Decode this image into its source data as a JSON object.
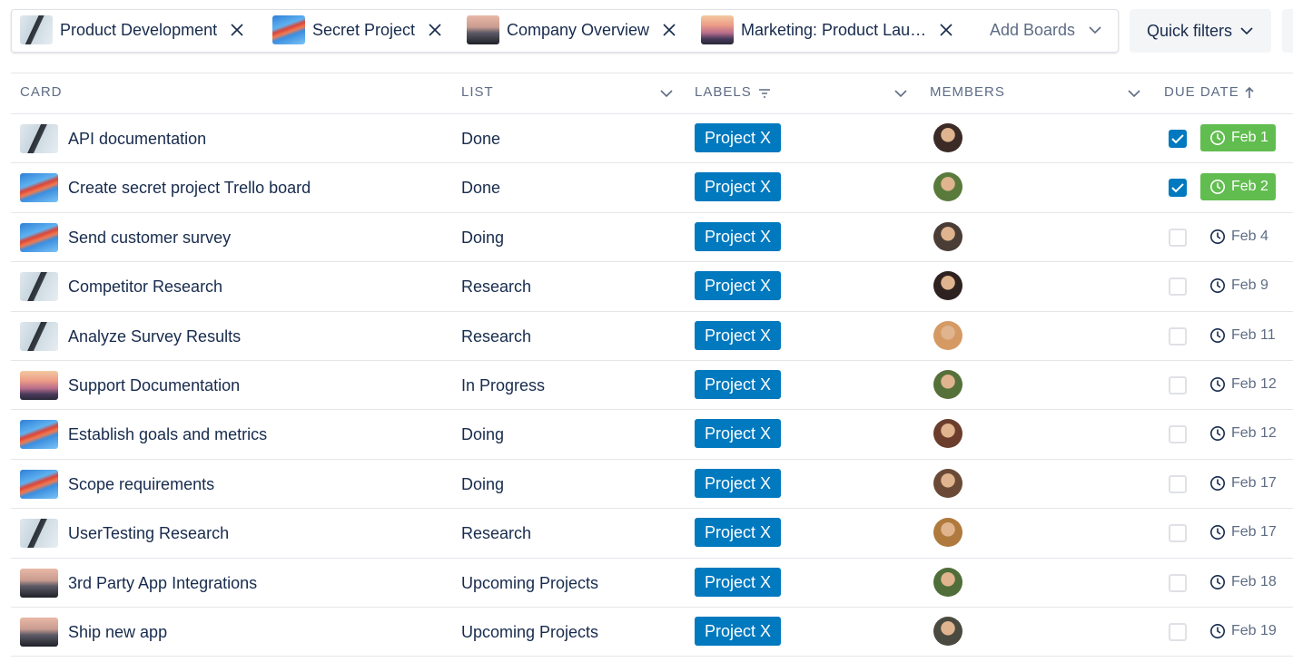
{
  "board_tabs": [
    "Product Development",
    "Secret Project",
    "Company Overview",
    "Marketing: Product Lau…"
  ],
  "add_boards": "Add Boards",
  "quick_filters": "Quick filters",
  "table": {
    "headers": [
      "CARD",
      "LIST",
      "LABELS",
      "MEMBERS",
      "DUE DATE"
    ],
    "rows": [
      {
        "card": "API documentation",
        "list": "Done",
        "label": "Project X",
        "due": "Feb 1",
        "complete": true
      },
      {
        "card": "Create secret project Trello board",
        "list": "Done",
        "label": "Project X",
        "due": "Feb 2",
        "complete": true
      },
      {
        "card": "Send customer survey",
        "list": "Doing",
        "label": "Project X",
        "due": "Feb 4",
        "complete": false
      },
      {
        "card": "Competitor Research",
        "list": "Research",
        "label": "Project X",
        "due": "Feb 9",
        "complete": false
      },
      {
        "card": "Analyze Survey Results",
        "list": "Research",
        "label": "Project X",
        "due": "Feb 11",
        "complete": false
      },
      {
        "card": "Support Documentation",
        "list": "In Progress",
        "label": "Project X",
        "due": "Feb 12",
        "complete": false
      },
      {
        "card": "Establish goals and metrics",
        "list": "Doing",
        "label": "Project X",
        "due": "Feb 12",
        "complete": false
      },
      {
        "card": "Scope requirements",
        "list": "Doing",
        "label": "Project X",
        "due": "Feb 17",
        "complete": false
      },
      {
        "card": "UserTesting Research",
        "list": "Research",
        "label": "Project X",
        "due": "Feb 17",
        "complete": false
      },
      {
        "card": "3rd Party App Integrations",
        "list": "Upcoming Projects",
        "label": "Project X",
        "due": "Feb 18",
        "complete": false
      },
      {
        "card": "Ship new app",
        "list": "Upcoming Projects",
        "label": "Project X",
        "due": "Feb 19",
        "complete": false
      }
    ]
  }
}
